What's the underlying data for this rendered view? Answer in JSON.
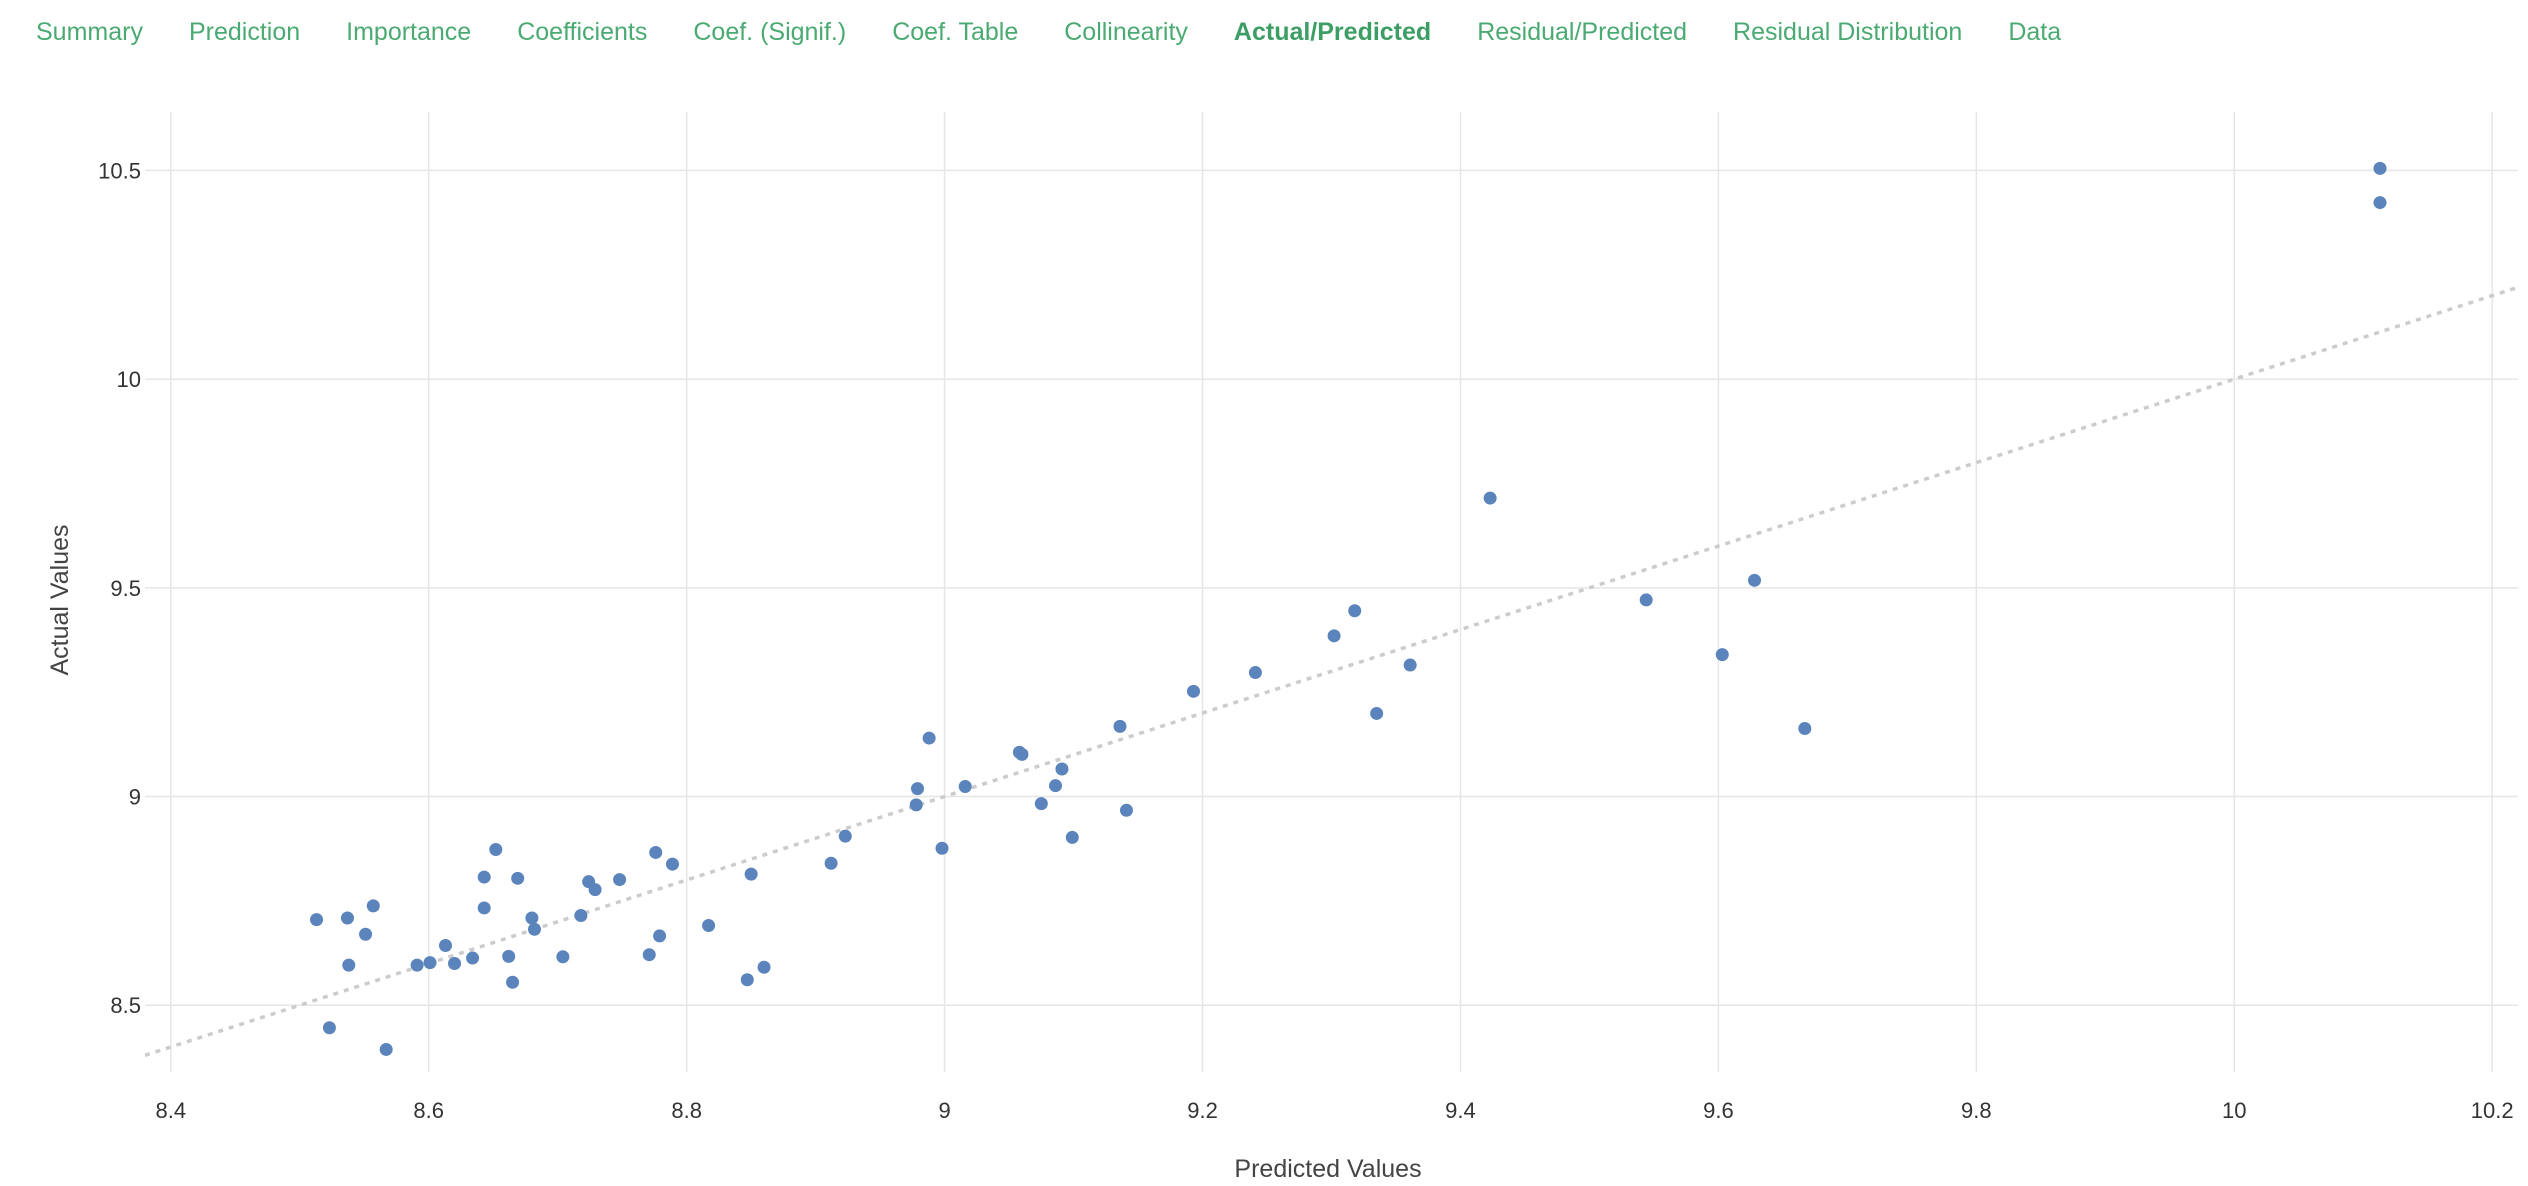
{
  "tabs": [
    {
      "label": "Summary",
      "active": false
    },
    {
      "label": "Prediction",
      "active": false
    },
    {
      "label": "Importance",
      "active": false
    },
    {
      "label": "Coefficients",
      "active": false
    },
    {
      "label": "Coef. (Signif.)",
      "active": false
    },
    {
      "label": "Coef. Table",
      "active": false
    },
    {
      "label": "Collinearity",
      "active": false
    },
    {
      "label": "Actual/Predicted",
      "active": true
    },
    {
      "label": "Residual/Predicted",
      "active": false
    },
    {
      "label": "Residual Distribution",
      "active": false
    },
    {
      "label": "Data",
      "active": false
    }
  ],
  "chart_data": {
    "type": "scatter",
    "xlabel": "Predicted Values",
    "ylabel": "Actual Values",
    "xlim": [
      8.38,
      10.22
    ],
    "ylim": [
      8.34,
      10.64
    ],
    "xticks": [
      "8.4",
      "8.6",
      "8.8",
      "9",
      "9.2",
      "9.4",
      "9.6",
      "9.8",
      "10",
      "10.2"
    ],
    "yticks": [
      "8.5",
      "9",
      "9.5",
      "10",
      "10.5"
    ],
    "grid": true,
    "point_color": "#5a84bb",
    "reference_line": {
      "style": "dotted",
      "color": "#cccccc",
      "equation": "y = x"
    },
    "points": [
      [
        8.513,
        8.705
      ],
      [
        8.523,
        8.446
      ],
      [
        8.537,
        8.709
      ],
      [
        8.538,
        8.596
      ],
      [
        8.551,
        8.67
      ],
      [
        8.557,
        8.738
      ],
      [
        8.567,
        8.394
      ],
      [
        8.591,
        8.596
      ],
      [
        8.601,
        8.602
      ],
      [
        8.613,
        8.643
      ],
      [
        8.62,
        8.6
      ],
      [
        8.634,
        8.613
      ],
      [
        8.643,
        8.807
      ],
      [
        8.643,
        8.733
      ],
      [
        8.652,
        8.873
      ],
      [
        8.662,
        8.617
      ],
      [
        8.665,
        8.555
      ],
      [
        8.669,
        8.804
      ],
      [
        8.68,
        8.709
      ],
      [
        8.682,
        8.682
      ],
      [
        8.704,
        8.616
      ],
      [
        8.718,
        8.715
      ],
      [
        8.724,
        8.796
      ],
      [
        8.729,
        8.777
      ],
      [
        8.748,
        8.801
      ],
      [
        8.771,
        8.621
      ],
      [
        8.776,
        8.866
      ],
      [
        8.779,
        8.666
      ],
      [
        8.789,
        8.838
      ],
      [
        8.817,
        8.691
      ],
      [
        8.847,
        8.561
      ],
      [
        8.85,
        8.814
      ],
      [
        8.86,
        8.591
      ],
      [
        8.912,
        8.84
      ],
      [
        8.923,
        8.905
      ],
      [
        8.978,
        8.98
      ],
      [
        8.979,
        9.019
      ],
      [
        8.988,
        9.14
      ],
      [
        8.998,
        8.876
      ],
      [
        9.016,
        9.024
      ],
      [
        9.058,
        9.106
      ],
      [
        9.06,
        9.101
      ],
      [
        9.075,
        8.983
      ],
      [
        9.086,
        9.026
      ],
      [
        9.091,
        9.066
      ],
      [
        9.099,
        8.902
      ],
      [
        9.136,
        9.168
      ],
      [
        9.141,
        8.967
      ],
      [
        9.193,
        9.252
      ],
      [
        9.241,
        9.297
      ],
      [
        9.302,
        9.385
      ],
      [
        9.318,
        9.445
      ],
      [
        9.335,
        9.199
      ],
      [
        9.361,
        9.315
      ],
      [
        9.423,
        9.715
      ],
      [
        9.544,
        9.471
      ],
      [
        9.603,
        9.34
      ],
      [
        9.628,
        9.518
      ],
      [
        9.667,
        9.163
      ],
      [
        10.113,
        10.505
      ],
      [
        10.113,
        10.423
      ]
    ]
  }
}
